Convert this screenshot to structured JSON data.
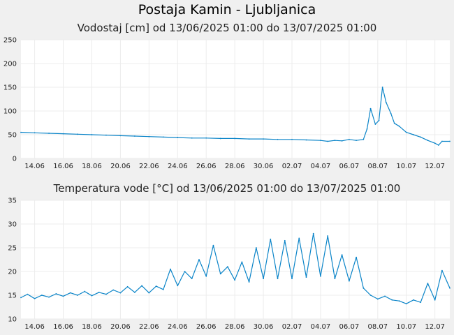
{
  "page": {
    "title": "Postaja Kamin - Ljubljanica"
  },
  "colors": {
    "line": "#0a84c8",
    "plot_bg": "#ffffff",
    "page_bg": "#f0f0f0",
    "grid": "#ececec"
  },
  "chart_data": [
    {
      "type": "line",
      "title": "Vodostaj [cm] od 13/06/2025 01:00 do 13/07/2025 01:00",
      "xlabel": "",
      "ylabel": "",
      "ylim": [
        0,
        250
      ],
      "yticks": [
        0,
        50,
        100,
        150,
        200,
        250
      ],
      "xlim": [
        "2025-06-13T01:00",
        "2025-07-13T01:00"
      ],
      "xtick_labels": [
        "14.06",
        "16.06",
        "18.06",
        "20.06",
        "22.06",
        "24.06",
        "26.06",
        "28.06",
        "30.06",
        "02.07",
        "04.07",
        "06.07",
        "08.07",
        "10.07",
        "12.07"
      ],
      "grid": true,
      "series": [
        {
          "x": [
            "2025-06-13T01:00",
            "2025-06-14T00:00",
            "2025-06-15T00:00",
            "2025-06-16T00:00",
            "2025-06-17T00:00",
            "2025-06-18T00:00",
            "2025-06-19T00:00",
            "2025-06-20T00:00",
            "2025-06-21T00:00",
            "2025-06-22T00:00",
            "2025-06-23T00:00",
            "2025-06-24T00:00",
            "2025-06-25T00:00",
            "2025-06-26T00:00",
            "2025-06-27T00:00",
            "2025-06-28T00:00",
            "2025-06-29T00:00",
            "2025-06-30T00:00",
            "2025-07-01T00:00",
            "2025-07-02T00:00",
            "2025-07-03T00:00",
            "2025-07-04T00:00",
            "2025-07-04T12:00",
            "2025-07-05T00:00",
            "2025-07-05T12:00",
            "2025-07-06T00:00",
            "2025-07-06T12:00",
            "2025-07-07T00:00",
            "2025-07-07T06:00",
            "2025-07-07T12:00",
            "2025-07-07T20:00",
            "2025-07-08T02:00",
            "2025-07-08T08:00",
            "2025-07-08T14:00",
            "2025-07-08T22:00",
            "2025-07-09T04:00",
            "2025-07-09T12:00",
            "2025-07-10T00:00",
            "2025-07-10T12:00",
            "2025-07-11T00:00",
            "2025-07-11T12:00",
            "2025-07-12T00:00",
            "2025-07-12T06:00",
            "2025-07-12T12:00",
            "2025-07-13T01:00"
          ],
          "values": [
            55,
            54,
            53,
            52,
            51,
            50,
            49,
            48,
            47,
            46,
            45,
            44,
            43,
            43,
            42,
            42,
            41,
            41,
            40,
            40,
            39,
            38,
            36,
            38,
            37,
            40,
            38,
            40,
            62,
            105,
            72,
            80,
            150,
            118,
            95,
            74,
            68,
            55,
            50,
            45,
            38,
            32,
            28,
            36,
            36
          ]
        }
      ]
    },
    {
      "type": "line",
      "title": "Temperatura vode [°C] od 13/06/2025 01:00 do 13/07/2025 01:00",
      "xlabel": "",
      "ylabel": "",
      "ylim": [
        10,
        35
      ],
      "yticks": [
        10,
        15,
        20,
        25,
        30,
        35
      ],
      "xlim": [
        "2025-06-13T01:00",
        "2025-07-13T01:00"
      ],
      "xtick_labels": [
        "14.06",
        "16.06",
        "18.06",
        "20.06",
        "22.06",
        "24.06",
        "26.06",
        "28.06",
        "30.06",
        "02.07",
        "04.07",
        "06.07",
        "08.07",
        "10.07",
        "12.07"
      ],
      "grid": true,
      "series": [
        {
          "x": [
            "2025-06-13T01:00",
            "2025-06-13T12:00",
            "2025-06-14T00:00",
            "2025-06-14T12:00",
            "2025-06-15T00:00",
            "2025-06-15T12:00",
            "2025-06-16T00:00",
            "2025-06-16T12:00",
            "2025-06-17T00:00",
            "2025-06-17T12:00",
            "2025-06-18T00:00",
            "2025-06-18T12:00",
            "2025-06-19T00:00",
            "2025-06-19T12:00",
            "2025-06-20T00:00",
            "2025-06-20T12:00",
            "2025-06-21T00:00",
            "2025-06-21T12:00",
            "2025-06-22T00:00",
            "2025-06-22T12:00",
            "2025-06-23T00:00",
            "2025-06-23T12:00",
            "2025-06-24T00:00",
            "2025-06-24T12:00",
            "2025-06-25T00:00",
            "2025-06-25T12:00",
            "2025-06-26T00:00",
            "2025-06-26T12:00",
            "2025-06-27T00:00",
            "2025-06-27T12:00",
            "2025-06-28T00:00",
            "2025-06-28T12:00",
            "2025-06-29T00:00",
            "2025-06-29T12:00",
            "2025-06-30T00:00",
            "2025-06-30T12:00",
            "2025-07-01T00:00",
            "2025-07-01T12:00",
            "2025-07-02T00:00",
            "2025-07-02T12:00",
            "2025-07-03T00:00",
            "2025-07-03T12:00",
            "2025-07-04T00:00",
            "2025-07-04T12:00",
            "2025-07-05T00:00",
            "2025-07-05T12:00",
            "2025-07-06T00:00",
            "2025-07-06T12:00",
            "2025-07-07T00:00",
            "2025-07-07T12:00",
            "2025-07-08T00:00",
            "2025-07-08T12:00",
            "2025-07-09T00:00",
            "2025-07-09T12:00",
            "2025-07-10T00:00",
            "2025-07-10T12:00",
            "2025-07-11T00:00",
            "2025-07-11T12:00",
            "2025-07-12T00:00",
            "2025-07-12T12:00",
            "2025-07-13T01:00"
          ],
          "values": [
            14.5,
            15.2,
            14.3,
            15.0,
            14.6,
            15.3,
            14.8,
            15.5,
            15.0,
            15.8,
            14.9,
            15.6,
            15.2,
            16.1,
            15.5,
            16.8,
            15.6,
            17.0,
            15.5,
            16.9,
            16.2,
            20.5,
            17.0,
            20.0,
            18.5,
            22.5,
            19.0,
            25.5,
            19.5,
            21.0,
            18.2,
            22.0,
            17.8,
            25.0,
            18.5,
            26.8,
            18.5,
            26.5,
            18.5,
            27.0,
            18.8,
            28.0,
            19.0,
            27.5,
            18.5,
            23.5,
            18.0,
            23.0,
            16.5,
            15.0,
            14.2,
            14.8,
            14.0,
            13.8,
            13.2,
            14.0,
            13.5,
            17.5,
            14.0,
            20.2,
            16.5
          ]
        }
      ]
    }
  ]
}
